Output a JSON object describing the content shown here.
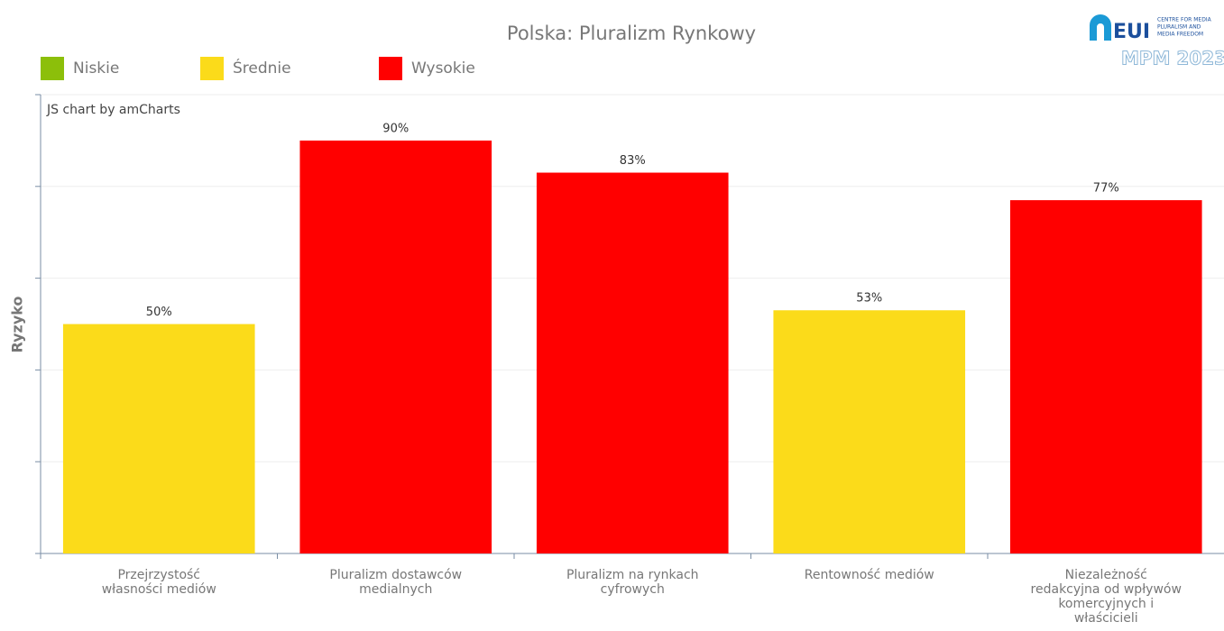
{
  "chart_data": {
    "type": "bar",
    "title": "Polska: Pluralizm Rynkowy",
    "ylabel": "Ryzyko",
    "credit": "JS chart by amCharts",
    "logo": {
      "mark": "EUI",
      "lines": [
        "CENTRE FOR MEDIA",
        "PLURALISM AND",
        "MEDIA FREEDOM"
      ],
      "edition": "MPM 2023"
    },
    "legend": [
      {
        "name": "Niskie",
        "color": "#8cbf0a"
      },
      {
        "name": "Średnie",
        "color": "#fbdb1a"
      },
      {
        "name": "Wysokie",
        "color": "#ff0000"
      }
    ],
    "categories": [
      [
        "Przejrzystość",
        "własności mediów"
      ],
      [
        "Pluralizm dostawców",
        "medialnych"
      ],
      [
        "Pluralizm na rynkach",
        "cyfrowych"
      ],
      [
        "Rentowność mediów"
      ],
      [
        "Niezależność",
        "redakcyjna od wpływów",
        "komercyjnych i",
        "właścicieli"
      ]
    ],
    "values": [
      50,
      90,
      83,
      53,
      77
    ],
    "value_labels": [
      "50%",
      "90%",
      "83%",
      "53%",
      "77%"
    ],
    "colors": [
      "#fbdb1a",
      "#ff0000",
      "#ff0000",
      "#fbdb1a",
      "#ff0000"
    ],
    "ylim": [
      0,
      100
    ],
    "yticks": [
      0,
      20,
      40,
      60,
      80,
      100
    ],
    "grid": true
  }
}
